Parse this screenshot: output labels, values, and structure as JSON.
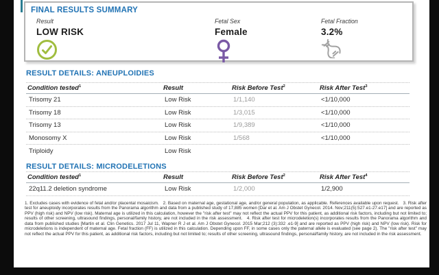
{
  "colors": {
    "accent-blue": "#2173b4",
    "check-green": "#a0bd3f",
    "female-purple": "#7a59a5",
    "dna-gray": "#a2a2a2",
    "teal": "#2a7d91"
  },
  "summary": {
    "title": "FINAL RESULTS SUMMARY",
    "items": [
      {
        "label": "Result",
        "value": "LOW RISK",
        "icon": "check-circle-icon"
      },
      {
        "label": "Fetal Sex",
        "value": "Female",
        "icon": "female-icon"
      },
      {
        "label": "Fetal Fraction",
        "value": "3.2%",
        "icon": "dna-icon"
      }
    ]
  },
  "aneuploidies": {
    "title": "RESULT DETAILS: ANEUPLOIDIES",
    "columns": [
      {
        "label": "Condition tested",
        "sup": "1"
      },
      {
        "label": "Result",
        "sup": ""
      },
      {
        "label": "Risk Before Test",
        "sup": "2"
      },
      {
        "label": "Risk After Test",
        "sup": "3"
      }
    ],
    "rows": [
      {
        "condition": "Trisomy 21",
        "result": "Low Risk",
        "before": "1/1,140",
        "after": "<1/10,000"
      },
      {
        "condition": "Trisomy 18",
        "result": "Low Risk",
        "before": "1/3,015",
        "after": "<1/10,000"
      },
      {
        "condition": "Trisomy 13",
        "result": "Low Risk",
        "before": "1/9,389",
        "after": "<1/10,000"
      },
      {
        "condition": "Monosomy X",
        "result": "Low Risk",
        "before": "1/568",
        "after": "<1/10,000"
      },
      {
        "condition": "Triploidy",
        "result": "Low Risk",
        "before": "",
        "after": ""
      }
    ]
  },
  "microdeletions": {
    "title": "RESULT DETAILS: MICRODELETIONS",
    "columns": [
      {
        "label": "Condition tested",
        "sup": "1"
      },
      {
        "label": "Result",
        "sup": ""
      },
      {
        "label": "Risk Before Test",
        "sup": "2"
      },
      {
        "label": "Risk After Test",
        "sup": "4"
      }
    ],
    "rows": [
      {
        "condition": "22q11.2 deletion syndrome",
        "result": "Low Risk",
        "before": "1/2,000",
        "after": "1/2,900"
      }
    ]
  },
  "footnotes": "1. Excludes cases with evidence of fetal and/or placental mosaicism.   2. Based on maternal age, gestational age, and/or general population, as applicable. References available upon request.   3. Risk after test for aneuploidy incorporates results from the Panorama algorithm and data from a published study of 17,885 women [Dar et al. Am J Obstet Gynecol. 2014. Nov;211(5):527.e1-27.e17] and are reported as PPV (high risk) and NPV (low risk). Maternal age is utilized in this calculation, however the \"risk after test\" may not reflect the actual PPV for this patient, as additional risk factors, including but not limited to; results of other screening, ultrasound findings, personal/family history, are not included in the risk assessment.   4. Risk after test for microdeletion(s) incorporates results from the Panorama algorithm and data from published studies [Martin et al. Clin Genetics. 2017 Jul 11, Wapner R J et al. Am J Obstet Gynecol. 2015 Mar;212 (3):332 .e1-9] and are reported as PPV (high risk) and NPV (low risk). Risk for microdeletions is independent of maternal age. Fetal fraction (FF) is utilized in this calculation. Depending upon FF, in some cases only the paternal allele is evaluated (see page 2). The \"risk after test\" may not reflect the actual PPV for this patient, as additional risk factors, including but not limited to; results of other screening, ultrasound findings, personal/family history, are not included in the risk assessment."
}
